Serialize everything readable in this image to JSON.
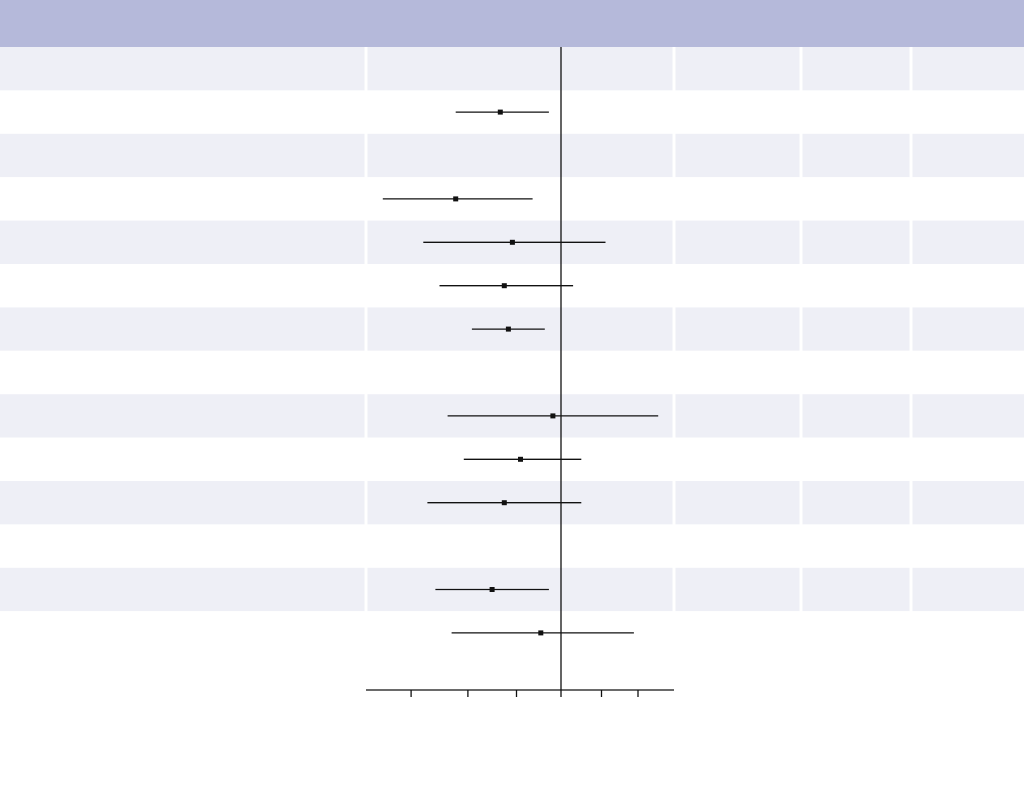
{
  "colors": {
    "header_band": "#b5b9da",
    "shaded_row": "#eeeff6",
    "plain_row": "#ffffff",
    "column_divider": "#ffffff",
    "ink": "#111111"
  },
  "chart_data": {
    "type": "forest",
    "title": "",
    "xlabel": "",
    "ylabel": "",
    "grid": false,
    "legend": "none",
    "reference_line": 0,
    "x_range": [
      -4.8,
      2.8
    ],
    "x_ticks": [
      -3.7,
      -2.3,
      -1.1,
      0,
      1,
      1.9
    ],
    "x_tick_labels": [],
    "row_labels": [],
    "rows": [
      {
        "estimate": null,
        "lower": null,
        "upper": null
      },
      {
        "estimate": -1.5,
        "lower": -2.6,
        "upper": -0.3
      },
      {
        "estimate": null,
        "lower": null,
        "upper": null
      },
      {
        "estimate": -2.6,
        "lower": -4.4,
        "upper": -0.7
      },
      {
        "estimate": -1.2,
        "lower": -3.4,
        "upper": 1.1
      },
      {
        "estimate": -1.4,
        "lower": -3.0,
        "upper": 0.3
      },
      {
        "estimate": -1.3,
        "lower": -2.2,
        "upper": -0.4
      },
      {
        "estimate": null,
        "lower": null,
        "upper": null
      },
      {
        "estimate": -0.2,
        "lower": -2.8,
        "upper": 2.4
      },
      {
        "estimate": -1.0,
        "lower": -2.4,
        "upper": 0.5
      },
      {
        "estimate": -1.4,
        "lower": -3.3,
        "upper": 0.5
      },
      {
        "estimate": null,
        "lower": null,
        "upper": null
      },
      {
        "estimate": -1.7,
        "lower": -3.1,
        "upper": -0.3
      },
      {
        "estimate": -0.5,
        "lower": -2.7,
        "upper": 1.8
      }
    ]
  }
}
